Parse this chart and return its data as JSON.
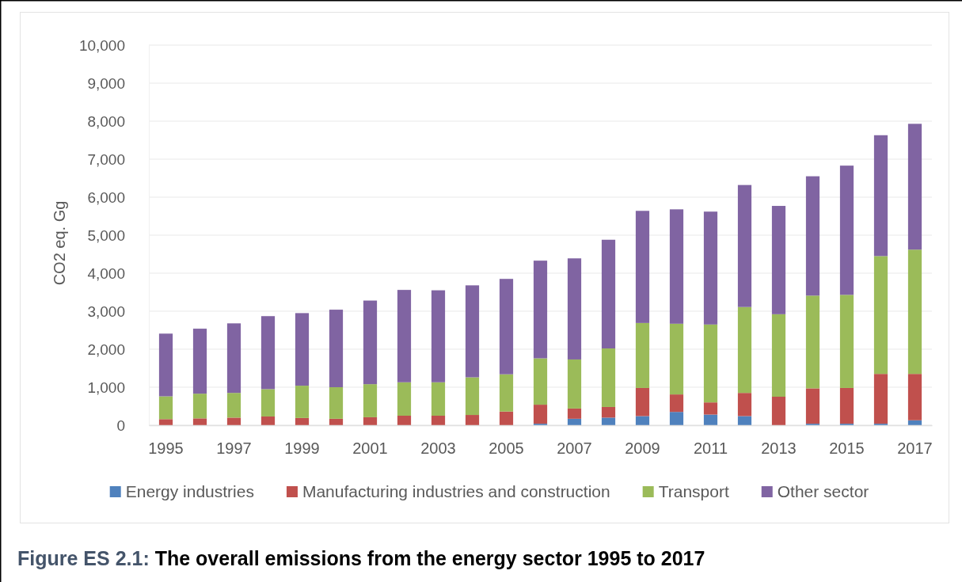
{
  "chart_data": {
    "type": "bar",
    "stacked": true,
    "title": "Figure ES 2.1: The overall emissions from the energy sector 1995 to 2017",
    "ylabel": "CO2 eq. Gg",
    "categories": [
      "1995",
      null,
      "1997",
      null,
      "1999",
      null,
      "2001",
      null,
      "2003",
      null,
      "2005",
      null,
      "2007",
      null,
      "2009",
      null,
      "2011",
      null,
      "2013",
      null,
      "2015",
      null,
      "2017"
    ],
    "series": [
      {
        "name": "Energy industries",
        "color": "#4f81bd",
        "values": [
          0,
          0,
          0,
          0,
          0,
          0,
          0,
          0,
          0,
          0,
          0,
          40,
          170,
          200,
          240,
          350,
          280,
          240,
          0,
          40,
          40,
          40,
          130
        ]
      },
      {
        "name": "Manufacturing industries and construction",
        "color": "#c0504d",
        "values": [
          160,
          180,
          200,
          230,
          190,
          170,
          210,
          250,
          250,
          270,
          360,
          500,
          270,
          280,
          740,
          460,
          320,
          610,
          750,
          930,
          940,
          1310,
          1220
        ]
      },
      {
        "name": "Transport",
        "color": "#9bbb59",
        "values": [
          600,
          650,
          650,
          720,
          850,
          830,
          870,
          880,
          880,
          990,
          980,
          1220,
          1290,
          1540,
          1710,
          1860,
          2050,
          2260,
          2170,
          2440,
          2450,
          3100,
          3270
        ]
      },
      {
        "name": "Other sector",
        "color": "#8064a2",
        "values": [
          1650,
          1710,
          1830,
          1920,
          1910,
          2040,
          2200,
          2430,
          2420,
          2420,
          2510,
          2570,
          2660,
          2860,
          2950,
          3010,
          2970,
          3210,
          2850,
          3140,
          3400,
          3180,
          3310
        ]
      }
    ],
    "ylim": [
      0,
      10000
    ],
    "yticks": [
      0,
      {
        "value": 1000,
        "label": "1,000"
      },
      {
        "value": 2000,
        "label": "2,000"
      },
      {
        "value": 3000,
        "label": "3,000"
      },
      {
        "value": 4000,
        "label": "4,000"
      },
      {
        "value": 5000,
        "label": "5,000"
      },
      {
        "value": 6000,
        "label": "6,000"
      },
      {
        "value": 7000,
        "label": "7,000"
      },
      {
        "value": 8000,
        "label": "8,000"
      },
      {
        "value": 9000,
        "label": "9,000"
      },
      {
        "value": 10000,
        "label": "10,000"
      }
    ],
    "grid": "y",
    "legend": "bottom"
  }
}
